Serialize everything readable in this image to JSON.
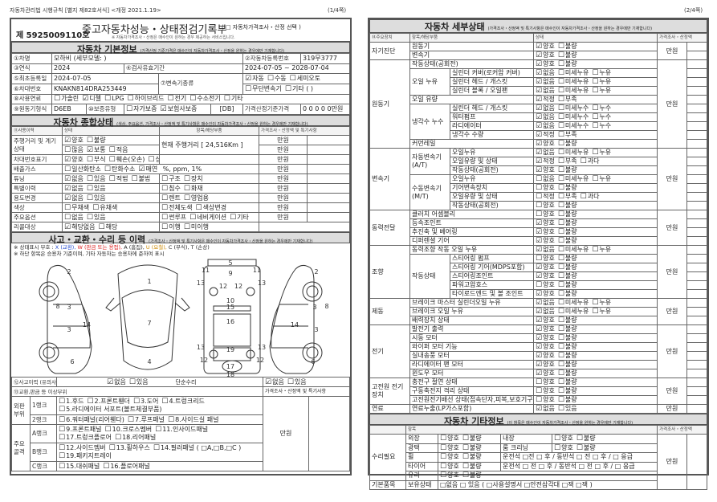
{
  "left_header": {
    "law": "자동차관리법 시행규칙 [별지 제82호서식] <개정 2021.1.19>",
    "page": "(1/4쪽)"
  },
  "right_header": {
    "page": "(2/4쪽)"
  },
  "title": {
    "doc_no": "제 5925009110호",
    "title": "중고자동차성능・상태점검기록부",
    "price_select": "( □ 자동차가격조사・산정 선택 )",
    "note": "※ 자동차가격조사・산정은 매수인이 원하는 경우 제공하는 서비스입니다."
  },
  "basic": {
    "title": "자동차 기본정보",
    "note": "(가격산정 기준가격은 매수인이 자동차가격조사・산정을 원하는 경우에만 기재합니다)",
    "car_name_label": "①차명",
    "car_name": "모하비 (세부모델: )",
    "reg_no_label": "②자동차등록번호",
    "reg_no": "319무3777",
    "year_label": "③연식",
    "year": "2024",
    "valid_label": "④검사유효기간",
    "valid": "2024-07-05 ~ 2028-07-04",
    "first_reg_label": "⑤최초등록일",
    "first_reg": "2024-07-05",
    "trans_label": "⑦변속기종류",
    "trans1": [
      {
        "l": "자동",
        "c": true
      },
      {
        "l": "수동",
        "c": false
      },
      {
        "l": "세미오토",
        "c": false
      }
    ],
    "trans2": [
      {
        "l": "무단변속기",
        "c": false
      },
      {
        "l": "기타 (      )",
        "c": false
      }
    ],
    "vin_label": "⑥차대번호",
    "vin": "KNAKN814DRA253449",
    "fuel_label": "⑧사용연료",
    "fuel": [
      {
        "l": "가솔린",
        "c": false
      },
      {
        "l": "디젤",
        "c": true
      },
      {
        "l": "LPG",
        "c": false
      },
      {
        "l": "하이브리드",
        "c": false
      },
      {
        "l": "전기",
        "c": false
      },
      {
        "l": "수소전기",
        "c": false
      },
      {
        "l": "기타",
        "c": false
      }
    ],
    "engine_label": "⑨원동기형식",
    "engine": "D6EB",
    "warranty_label": "⑩보증유형",
    "warranty": [
      {
        "l": "자가보증",
        "c": false
      },
      {
        "l": "보험사보증",
        "c": true
      }
    ],
    "warranty_code": "[DB]",
    "base_price_label": "가격산정기준가격",
    "base_price": "0 0 0 0 0만원"
  },
  "overall": {
    "title": "자동차 종합상태",
    "note": "(색상, 주요옵션, 가격조사・산정액 및 특기사항은 매수인이 자동차가격조사・산정을 원하는 경우에만 기재합니다)",
    "cols": [
      "⑪사용이력",
      "상태",
      "항목/해당부품",
      "가격조사・산정액 및 특기사항"
    ],
    "unit": "만원",
    "mileage_label": "주행거리 및 계기상태",
    "mileage_now": "현재 주행거리 [ 24,516Km ]",
    "mileage1": [
      {
        "l": "양호",
        "c": true
      },
      {
        "l": "불량",
        "c": false
      }
    ],
    "mileage2": [
      {
        "l": "많음",
        "c": false
      },
      {
        "l": "보통",
        "c": true
      },
      {
        "l": "적음",
        "c": false
      }
    ],
    "rows": [
      {
        "label": "차대번호표기",
        "state": [
          {
            "l": "양호",
            "c": true
          },
          {
            "l": "부식",
            "c": false
          },
          {
            "l": "훼손(오손)",
            "c": false
          },
          {
            "l": "상이",
            "c": false
          },
          {
            "l": "변조(변타)",
            "c": false
          },
          {
            "l": "도말",
            "c": false
          }
        ],
        "part": [],
        "price": true
      },
      {
        "label": "배출가스",
        "state": [
          {
            "l": "일산화탄소",
            "c": false
          },
          {
            "l": "탄화수소",
            "c": false
          },
          {
            "l": "매연",
            "c": true
          }
        ],
        "extra": "%,      ppm,      1%",
        "part": [],
        "price": true
      },
      {
        "label": "튜닝",
        "state": [
          {
            "l": "없음",
            "c": true
          },
          {
            "l": "있음",
            "c": false
          },
          {
            "l": "적법",
            "c": false
          },
          {
            "l": "불법",
            "c": false
          }
        ],
        "part": [
          {
            "l": "구조",
            "c": false
          },
          {
            "l": "장치",
            "c": false
          }
        ],
        "price": true
      },
      {
        "label": "특별이력",
        "state": [
          {
            "l": "없음",
            "c": true
          },
          {
            "l": "있음",
            "c": false
          }
        ],
        "part": [
          {
            "l": "침수",
            "c": false
          },
          {
            "l": "화재",
            "c": false
          }
        ],
        "price": true
      },
      {
        "label": "용도변경",
        "state": [
          {
            "l": "없음",
            "c": true
          },
          {
            "l": "있음",
            "c": false
          }
        ],
        "part": [
          {
            "l": "렌트",
            "c": false
          },
          {
            "l": "영업용",
            "c": false
          }
        ],
        "price": true
      },
      {
        "label": "색상",
        "state": [
          {
            "l": "무채색",
            "c": false
          },
          {
            "l": "유채색",
            "c": false
          }
        ],
        "part": [
          {
            "l": "전체도색",
            "c": false
          },
          {
            "l": "색상변경",
            "c": false
          }
        ],
        "price": true
      },
      {
        "label": "주요옵션",
        "state": [
          {
            "l": "없음",
            "c": false
          },
          {
            "l": "있음",
            "c": false
          }
        ],
        "part": [
          {
            "l": "썬루프",
            "c": false
          },
          {
            "l": "네비게이션",
            "c": false
          },
          {
            "l": "기타",
            "c": false
          }
        ],
        "price": true
      },
      {
        "label": "리콜대상",
        "state": [
          {
            "l": "해당없음",
            "c": true
          },
          {
            "l": "해당",
            "c": false
          }
        ],
        "part": [
          {
            "l": "이행",
            "c": false
          },
          {
            "l": "미이행",
            "c": false
          }
        ],
        "price": false
      }
    ]
  },
  "accident": {
    "title": "사고・교환・수리 등 이력",
    "note": "(가격조사・산정액 및 특기사항은 매수인이 자동차가격조사・산정을 원하는 경우에만 기재합니다)",
    "legend_prefix": "※ 상태표시 부호 :",
    "legend": [
      {
        "k": "x",
        "t": "X (교환),",
        "cls": "x"
      },
      {
        "k": "w",
        "t": "W (판금 또는 용접),",
        "cls": "w"
      },
      {
        "k": "a",
        "t": "A (흠집),",
        "cls": ""
      },
      {
        "k": "u",
        "t": "U (요철),",
        "cls": "u"
      },
      {
        "k": "c",
        "t": "C (부식),",
        "cls": ""
      },
      {
        "k": "t",
        "t": "T (손상)",
        "cls": ""
      }
    ],
    "note2": "※ 하단 항목은 승용차 기준이며, 기타 자동차는 승용차에 준하여 표시",
    "history_label": "⑫사고이력 (유의사항4참조)",
    "history": [
      {
        "l": "없음",
        "c": true
      },
      {
        "l": "있음",
        "c": false
      }
    ],
    "simple_label": "단순수리",
    "simple": [
      {
        "l": "없음",
        "c": true
      },
      {
        "l": "있음",
        "c": false
      }
    ],
    "parts_label": "⑬교환,판금 등 이상부위",
    "price_label": "가격조사・산정액 및 특기사항",
    "unit": "만원",
    "groups": [
      {
        "name": "외판 부위",
        "ranks": [
          {
            "rank": "1랭크",
            "lines": [
              [
                "1.후드",
                "2.프론트휀더",
                "3.도어",
                "4.트렁크리드"
              ],
              [
                "5.라디에이터 서포트(볼트체결부품)"
              ]
            ]
          },
          {
            "rank": "2랭크",
            "lines": [
              [
                "6.쿼터패널(리어휀다)",
                "7.루프패널",
                "8.사이드실 패널"
              ]
            ]
          }
        ]
      },
      {
        "name": "주요 골격",
        "ranks": [
          {
            "rank": "A랭크",
            "lines": [
              [
                "9.프론트패널",
                "10.크로스멤버",
                "11.인사이드패널"
              ],
              [
                "17.트렁크플로어",
                "18.리어패널"
              ]
            ]
          },
          {
            "rank": "B랭크",
            "lines": [
              [
                "12.사이드멤버",
                "13.휠하우스",
                "14.필러패널 ( □A,□B,□C )"
              ],
              [
                "19.패키지트레이"
              ]
            ]
          },
          {
            "rank": "C랭크",
            "lines": [
              [
                "15.대쉬패널",
                "16.플로어패널"
              ]
            ]
          }
        ]
      }
    ]
  },
  "detail": {
    "title": "자동차 세부상태",
    "note": "(가격조사・산정액 및 특기사항은 매수인이 자동차가격조사・산정을 원하는 경우에만 기재합니다)",
    "cols": [
      "⑭주요장치",
      "항목/해당부품",
      "상태",
      "가격조사・산정액"
    ],
    "unit": "만원",
    "groups": [
      {
        "name": "자기진단",
        "rows": [
          {
            "item": "원동기",
            "o": "양호:1,불량"
          },
          {
            "item": "변속기",
            "o": "양호:1,불량"
          }
        ]
      },
      {
        "name": "원동기",
        "rows": [
          {
            "item": "작동상태(공회전)",
            "o": "양호:1,불량"
          },
          {
            "sub": "오일 누유",
            "items": [
              {
                "item": "실린더 커버(로커암 커버)",
                "o": "없음:1,미세누유,누유"
              },
              {
                "item": "실린더 헤드 / 개스킷",
                "o": "없음:1,미세누유,누유"
              },
              {
                "item": "실린더 블록 / 오일팬",
                "o": "없음:1,미세누유,누유"
              }
            ]
          },
          {
            "item": "오일 유량",
            "o": "적정:1,부족"
          },
          {
            "sub": "냉각수 누수",
            "items": [
              {
                "item": "실린더 헤드 / 개스킷",
                "o": "없음:1,미세누수,누수"
              },
              {
                "item": "워터펌프",
                "o": "없음:1,미세누수,누수"
              },
              {
                "item": "라디에이터",
                "o": "없음:1,미세누수,누수"
              },
              {
                "item": "냉각수 수량",
                "o": "적정:1,부족"
              }
            ]
          },
          {
            "item": "커먼레일",
            "o": "양호:1,불량"
          }
        ]
      },
      {
        "name": "변속기",
        "rows": [
          {
            "sub": "자동변속기 (A/T)",
            "items": [
              {
                "item": "오일누유",
                "o": "없음:1,미세누유,누유"
              },
              {
                "item": "오일유량 및 상태",
                "o": "적정:1,부족,과다"
              },
              {
                "item": "작동상태(공회전)",
                "o": "양호:1,불량"
              }
            ]
          },
          {
            "sub": "수동변속기 (M/T)",
            "items": [
              {
                "item": "오일누유",
                "o": "없음,미세누유,누유"
              },
              {
                "item": "기어변속장치",
                "o": "양호,불량"
              },
              {
                "item": "오일유량 및 상태",
                "o": "적정,부족,과다"
              },
              {
                "item": "작동상태(공회전)",
                "o": "양호,불량"
              }
            ]
          }
        ]
      },
      {
        "name": "동력전달",
        "rows": [
          {
            "item": "클러치 어셈블리",
            "o": "양호,불량"
          },
          {
            "item": "등속조인트",
            "o": "양호:1,불량"
          },
          {
            "item": "추진축 및 베어링",
            "o": "양호:1,불량"
          },
          {
            "item": "디퍼렌셜 기어",
            "o": "양호:1,불량"
          }
        ]
      },
      {
        "name": "조향",
        "rows": [
          {
            "item": "동력조향 작동 오일 누유",
            "o": "없음:1,미세누유,누유"
          },
          {
            "sub": "작동상태",
            "items": [
              {
                "item": "스티어링 펌프",
                "o": "양호,불량"
              },
              {
                "item": "스티어링 기어(MDPS포함)",
                "o": "양호:1,불량"
              },
              {
                "item": "스티어링조인트",
                "o": "양호:1,불량"
              },
              {
                "item": "파워고압호스",
                "o": "양호,불량"
              },
              {
                "item": "타이로드엔드 및 볼 조인트",
                "o": "양호:1,불량"
              }
            ]
          }
        ]
      },
      {
        "name": "제동",
        "rows": [
          {
            "item": "브레이크 마스터 실린더오일 누유",
            "o": "없음:1,미세누유,누유"
          },
          {
            "item": "브레이크 오일 누유",
            "o": "없음:1,미세누유,누유"
          },
          {
            "item": "배력장치 상태",
            "o": "양호:1,불량"
          }
        ]
      },
      {
        "name": "전기",
        "rows": [
          {
            "item": "발전기 출력",
            "o": "양호:1,불량"
          },
          {
            "item": "시동 모터",
            "o": "양호:1,불량"
          },
          {
            "item": "와이퍼 모터 기능",
            "o": "양호:1,불량"
          },
          {
            "item": "실내송풍 모터",
            "o": "양호:1,불량"
          },
          {
            "item": "라디에이터 팬 모터",
            "o": "양호:1,불량"
          },
          {
            "item": "윈도우 모터",
            "o": "양호:1,불량"
          }
        ]
      },
      {
        "name": "고전원 전기장치",
        "rows": [
          {
            "item": "충전구 절연 상태",
            "o": "양호,불량"
          },
          {
            "item": "구동축전지 격리 상태",
            "o": "양호,불량"
          },
          {
            "item": "고전원전기배선 상태(접속단자,피복,보호기구)",
            "o": "양호,불량"
          }
        ]
      },
      {
        "name": "연료",
        "rows": [
          {
            "item": "연료누출(LP가스포함)",
            "o": "없음:1,있음"
          }
        ]
      }
    ]
  },
  "other": {
    "title": "자동차 기타정보",
    "note": "(이 항목은 매수인이 자동차가격조사・산정을 원하는 경우에만 기재합니다)",
    "col_item": "항목",
    "col_price": "가격조사・산정액",
    "unit": "만원",
    "repair_label": "수리필요",
    "basic_label": "기본품목",
    "exterior": "외장",
    "interior": "내장",
    "gloss": "광택",
    "room": "룸 크리닝",
    "wheel": "휠",
    "tire": "타이어",
    "glass": "유리",
    "good_bad": [
      {
        "l": "양호",
        "c": false
      },
      {
        "l": "불량",
        "c": false
      }
    ],
    "wheel_pos": "운전석 □전 □ 후 / 동반석 □ 전 □ 후 / □ 응급",
    "tire_pos": "운전석 □ 전 □ 후 / 동반석 □ 전 □ 후 / □ 응급",
    "own_label": "보유상태",
    "own": "□없음  □ 있음  ( □사용설명서 □안전삼각대 □잭 □잭 )"
  },
  "diagram_labels": [
    "2",
    "8",
    "3",
    "3",
    "14",
    "6",
    "1",
    "7",
    "4",
    "5",
    "9",
    "11",
    "11",
    "13",
    "13",
    "12",
    "12",
    "10",
    "15",
    "16",
    "19",
    "13",
    "13",
    "12",
    "12",
    "17",
    "18",
    "2",
    "3",
    "8",
    "14",
    "3",
    "6"
  ]
}
